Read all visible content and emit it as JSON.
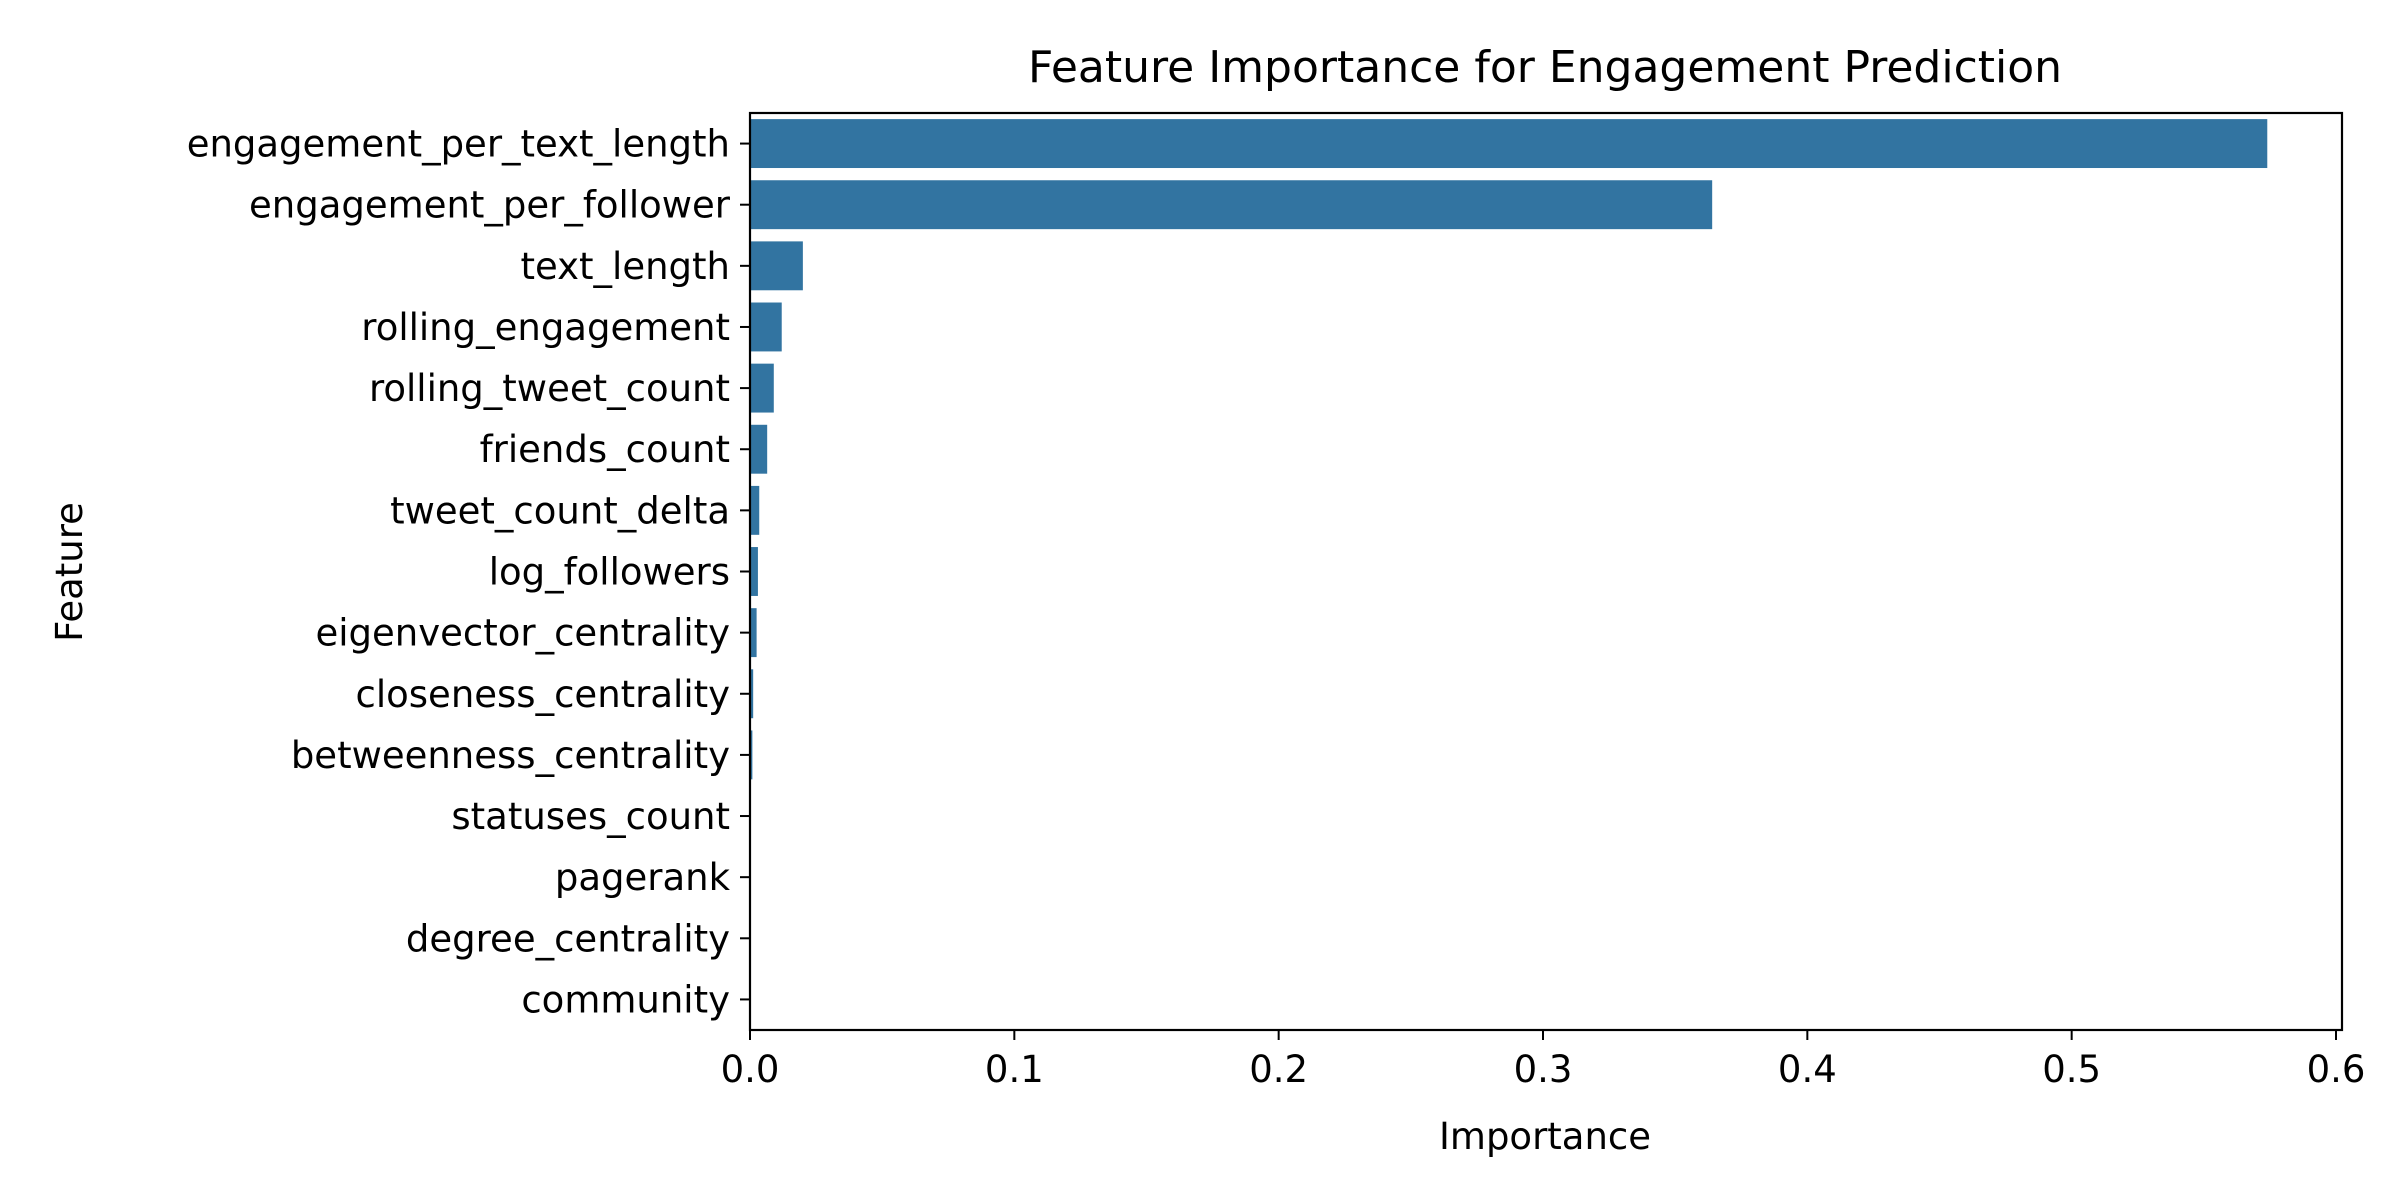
{
  "chart_data": {
    "type": "bar",
    "orientation": "horizontal",
    "title": "Feature Importance for Engagement Prediction",
    "xlabel": "Importance",
    "ylabel": "Feature",
    "xlim": [
      0,
      0.6
    ],
    "xticks": [
      0.0,
      0.1,
      0.2,
      0.3,
      0.4,
      0.5,
      0.6
    ],
    "xtick_labels": [
      "0.0",
      "0.1",
      "0.2",
      "0.3",
      "0.4",
      "0.5",
      "0.6"
    ],
    "grid": false,
    "legend": "none",
    "bar_color": "#3274a1",
    "categories": [
      "engagement_per_text_length",
      "engagement_per_follower",
      "text_length",
      "rolling_engagement",
      "rolling_tweet_count",
      "friends_count",
      "tweet_count_delta",
      "log_followers",
      "eigenvector_centrality",
      "closeness_centrality",
      "betweenness_centrality",
      "statuses_count",
      "pagerank",
      "degree_centrality",
      "community"
    ],
    "values": [
      0.574,
      0.364,
      0.02,
      0.012,
      0.009,
      0.0065,
      0.0035,
      0.003,
      0.0025,
      0.0012,
      0.0009,
      0.0003,
      0.0002,
      0.0001,
      0.0
    ]
  }
}
